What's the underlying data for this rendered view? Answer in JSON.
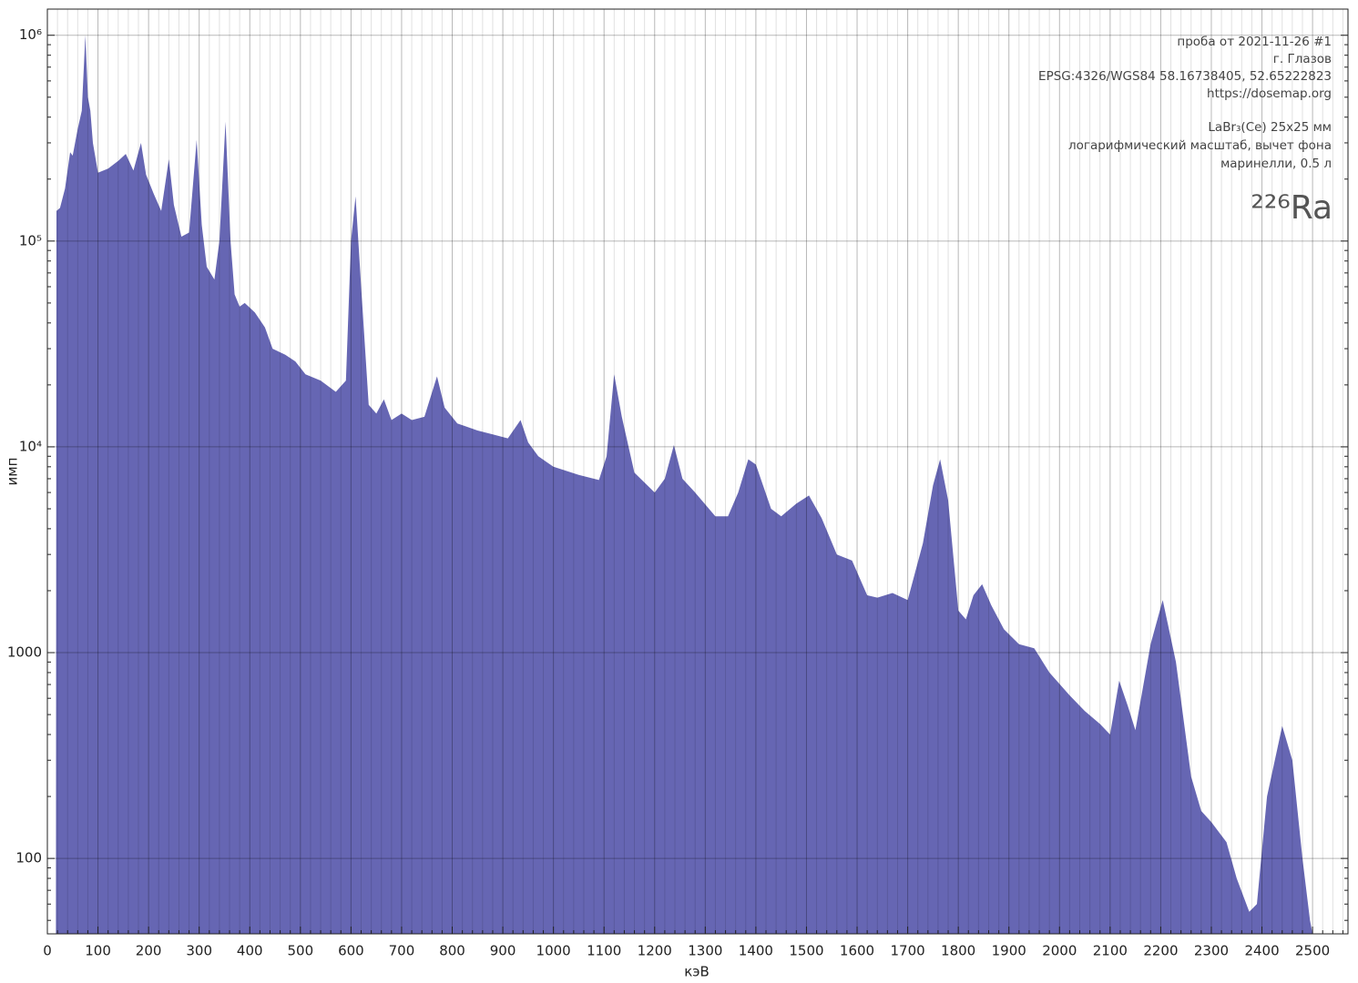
{
  "chart_data": {
    "type": "area",
    "xlabel": "кэВ",
    "ylabel": "имп",
    "annotations": [
      "проба от 2021-11-26 #1",
      "г. Глазов",
      "EPSG:4326/WGS84  58.16738405, 52.65222823",
      "https://dosemap.org",
      "LaBr₃(Ce) 25x25 мм",
      "логарифмический масштаб, вычет фона",
      "маринелли, 0.5 л"
    ],
    "isotope": "²²⁶Ra",
    "color": "#6666b3",
    "yscale": "log",
    "grid": true,
    "minor_divisions": 5,
    "xlim": [
      0,
      2570
    ],
    "ylim": [
      43,
      1340000
    ],
    "xticks": [
      0,
      100,
      200,
      300,
      400,
      500,
      600,
      700,
      800,
      900,
      1000,
      1100,
      1200,
      1300,
      1400,
      1500,
      1600,
      1700,
      1800,
      1900,
      2000,
      2100,
      2200,
      2300,
      2400,
      2500
    ],
    "yticks": [
      100,
      1000,
      {
        "value": 10000,
        "label": "10⁴"
      },
      {
        "value": 100000,
        "label": "10⁵"
      },
      {
        "value": 1000000,
        "label": "10⁶"
      }
    ],
    "x": [
      17,
      18,
      25,
      35,
      45,
      50,
      60,
      68,
      75,
      80,
      85,
      90,
      100,
      120,
      140,
      155,
      170,
      185,
      195,
      210,
      225,
      240,
      250,
      265,
      280,
      295,
      305,
      315,
      330,
      340,
      352,
      362,
      370,
      380,
      390,
      410,
      430,
      445,
      470,
      490,
      510,
      540,
      570,
      590,
      600,
      609,
      620,
      635,
      650,
      665,
      680,
      700,
      720,
      745,
      770,
      785,
      810,
      850,
      880,
      910,
      935,
      950,
      970,
      1000,
      1050,
      1090,
      1105,
      1120,
      1135,
      1160,
      1200,
      1220,
      1238,
      1255,
      1280,
      1320,
      1345,
      1365,
      1385,
      1400,
      1430,
      1450,
      1480,
      1505,
      1530,
      1560,
      1590,
      1620,
      1640,
      1670,
      1700,
      1730,
      1750,
      1764,
      1780,
      1800,
      1815,
      1830,
      1847,
      1865,
      1890,
      1920,
      1950,
      1980,
      2020,
      2050,
      2080,
      2100,
      2118,
      2135,
      2150,
      2180,
      2204,
      2230,
      2260,
      2280,
      2300,
      2330,
      2350,
      2375,
      2390,
      2410,
      2440,
      2460,
      2480,
      2495,
      2500
    ],
    "values": [
      43,
      140000,
      145000,
      180000,
      270000,
      260000,
      350000,
      430000,
      1000000,
      500000,
      430000,
      300000,
      215000,
      225000,
      245000,
      265000,
      220000,
      300000,
      210000,
      170000,
      140000,
      250000,
      150000,
      105000,
      110000,
      310000,
      120000,
      75000,
      65000,
      100000,
      380000,
      100000,
      55000,
      48000,
      50000,
      45000,
      38000,
      30000,
      28000,
      26000,
      22500,
      21000,
      18500,
      21000,
      100000,
      165000,
      60000,
      16000,
      14500,
      17000,
      13500,
      14500,
      13500,
      14000,
      22000,
      15500,
      13000,
      12000,
      11500,
      11000,
      13500,
      10500,
      9000,
      8000,
      7300,
      6900,
      9000,
      22500,
      14000,
      7500,
      6000,
      7000,
      10200,
      7000,
      6000,
      4600,
      4600,
      6000,
      8700,
      8200,
      5000,
      4600,
      5300,
      5800,
      4500,
      3000,
      2800,
      1900,
      1850,
      1950,
      1800,
      3400,
      6500,
      8700,
      5500,
      1600,
      1450,
      1900,
      2150,
      1700,
      1300,
      1100,
      1050,
      800,
      620,
      520,
      450,
      400,
      730,
      550,
      420,
      1100,
      1800,
      900,
      250,
      170,
      150,
      120,
      80,
      55,
      60,
      200,
      440,
      300,
      100,
      50,
      43
    ]
  }
}
